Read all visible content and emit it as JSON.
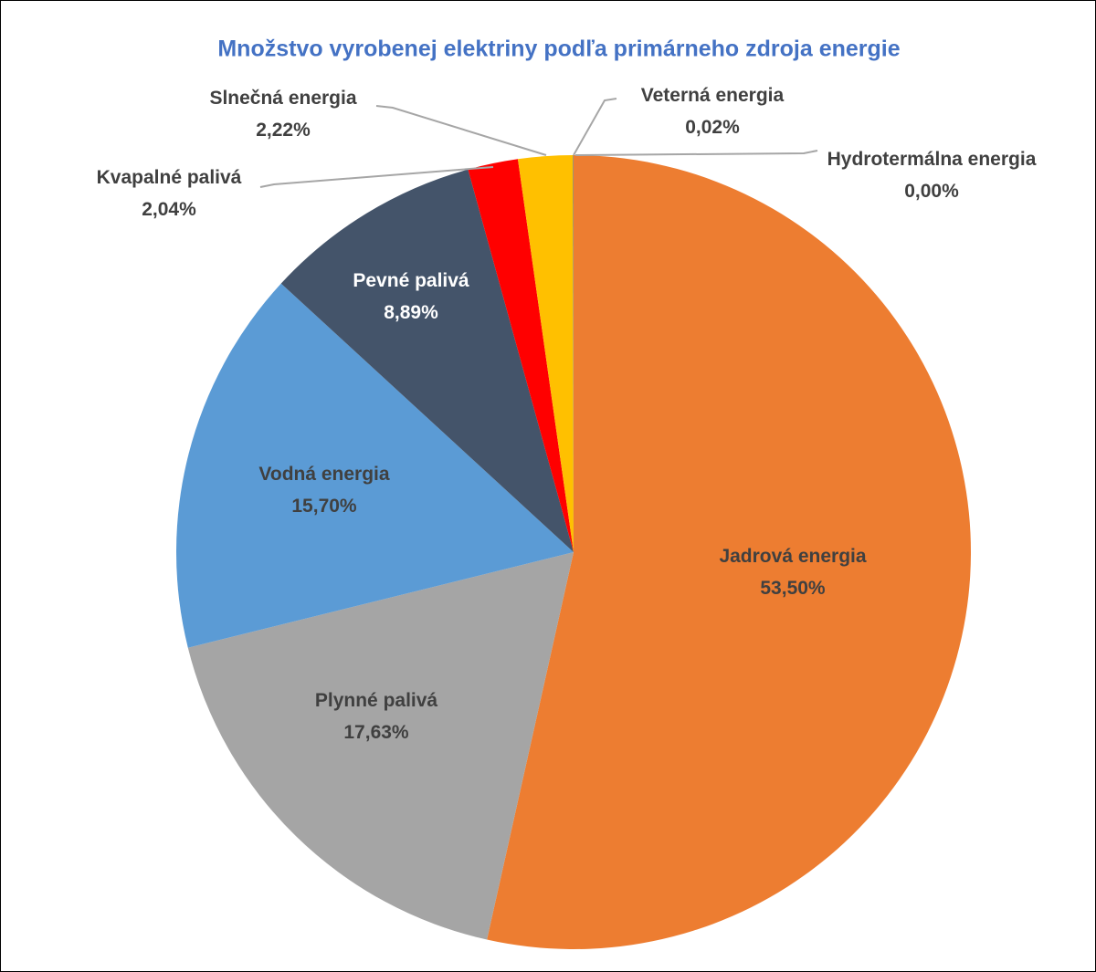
{
  "chart_data": {
    "type": "pie",
    "title": "Množstvo vyrobenej elektriny podľa primárneho zdroja energie",
    "categories": [
      "Jadrová energia",
      "Plynné palivá",
      "Vodná energia",
      "Pevné palivá",
      "Kvapalné palivá",
      "Slnečná energia",
      "Veterná energia",
      "Hydrotermálna energia"
    ],
    "values": [
      53.5,
      17.63,
      15.7,
      8.89,
      2.04,
      2.22,
      0.02,
      0.0
    ],
    "value_labels": [
      "53,50%",
      "17,63%",
      "15,70%",
      "8,89%",
      "2,04%",
      "2,22%",
      "0,02%",
      "0,00%"
    ],
    "colors": [
      "#ed7d31",
      "#a5a5a5",
      "#5b9bd5",
      "#44546a",
      "#ff0000",
      "#ffc000",
      "#4472c4",
      "#70ad47"
    ]
  }
}
